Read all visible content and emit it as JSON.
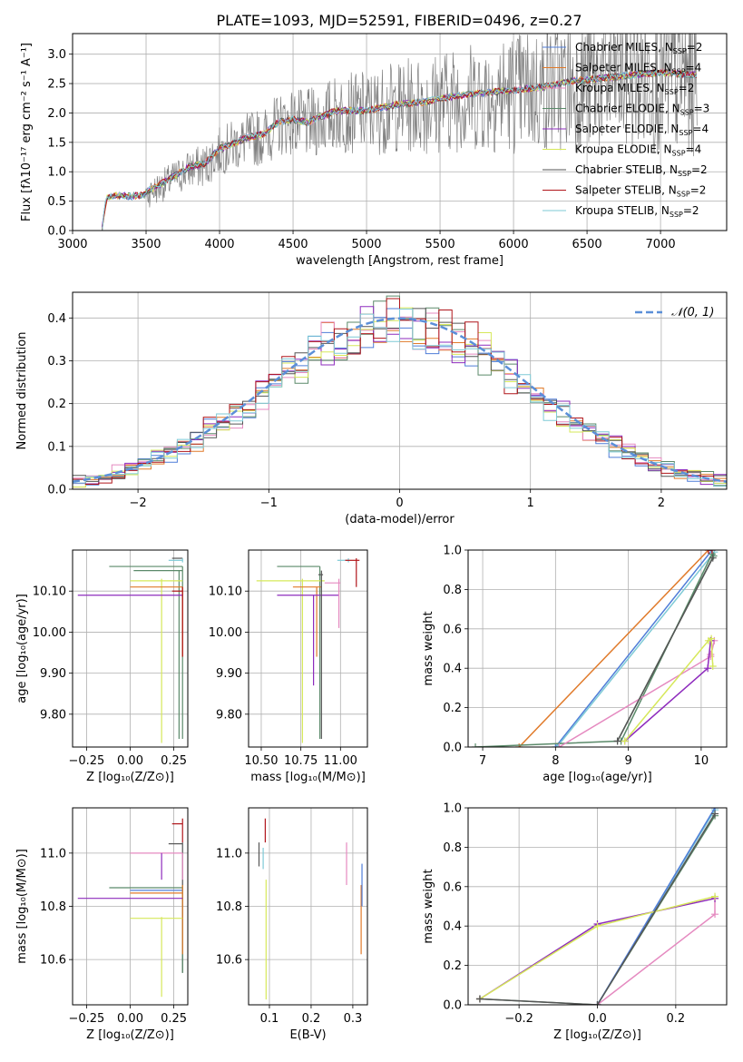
{
  "figure": {
    "suptitle": "PLATE=1093, MJD=52591, FIBERID=0496, z=0.27"
  },
  "chart_data": [
    {
      "type": "line",
      "id": "spectrum",
      "xlabel": "wavelength [Angstrom, rest frame]",
      "ylabel": "Flux [fλ10⁻¹⁷ erg cm⁻² s⁻¹ A⁻¹]",
      "xlim": [
        3000,
        7450
      ],
      "ylim": [
        0,
        3.35
      ],
      "xticks": [
        3000,
        3500,
        4000,
        4500,
        5000,
        5500,
        6000,
        6500,
        7000
      ],
      "yticks": [
        0.0,
        0.5,
        1.0,
        1.5,
        2.0,
        2.5,
        3.0
      ],
      "grid": true,
      "legend_position": "upper-right",
      "series": [
        {
          "name": "Chabrier MILES, N_SSP=2",
          "label_main": "Chabrier MILES, N",
          "label_sub": "SSP",
          "label_tail": "=2",
          "color": "#4f7dd8"
        },
        {
          "name": "Salpeter MILES, N_SSP=4",
          "label_main": "Salpeter MILES, N",
          "label_sub": "SSP",
          "label_tail": "=4",
          "color": "#e07a2a"
        },
        {
          "name": "Kroupa MILES, N_SSP=2",
          "label_main": "Kroupa MILES, N",
          "label_sub": "SSP",
          "label_tail": "=2",
          "color": "#e58ac0"
        },
        {
          "name": "Chabrier ELODIE, N_SSP=3",
          "label_main": "Chabrier ELODIE, N",
          "label_sub": "SSP",
          "label_tail": "=3",
          "color": "#5b8a6a"
        },
        {
          "name": "Salpeter ELODIE, N_SSP=4",
          "label_main": "Salpeter ELODIE, N",
          "label_sub": "SSP",
          "label_tail": "=4",
          "color": "#8e2bbd"
        },
        {
          "name": "Kroupa ELODIE, N_SSP=4",
          "label_main": "Kroupa ELODIE, N",
          "label_sub": "SSP",
          "label_tail": "=4",
          "color": "#d6e85a"
        },
        {
          "name": "Chabrier STELIB, N_SSP=2",
          "label_main": "Chabrier STELIB, N",
          "label_sub": "SSP",
          "label_tail": "=2",
          "color": "#555555"
        },
        {
          "name": "Salpeter STELIB, N_SSP=2",
          "label_main": "Salpeter STELIB, N",
          "label_sub": "SSP",
          "label_tail": "=2",
          "color": "#b0151a"
        },
        {
          "name": "Kroupa STELIB, N_SSP=2",
          "label_main": "Kroupa STELIB, N",
          "label_sub": "SSP",
          "label_tail": "=2",
          "color": "#7ecad6"
        }
      ],
      "data_color": "#808080",
      "continuum": {
        "x": [
          3200,
          3230,
          3300,
          3400,
          3500,
          3600,
          3700,
          3800,
          3900,
          4000,
          4100,
          4200,
          4300,
          4400,
          4500,
          4600,
          4700,
          4800,
          4900,
          5000,
          5200,
          5400,
          5600,
          5800,
          6000,
          6200,
          6400,
          6600,
          6800,
          7000,
          7250
        ],
        "y": [
          0.0,
          0.55,
          0.6,
          0.58,
          0.62,
          0.75,
          0.9,
          1.05,
          1.1,
          1.35,
          1.45,
          1.55,
          1.6,
          1.8,
          1.85,
          1.8,
          1.9,
          2.0,
          2.0,
          2.0,
          2.1,
          2.15,
          2.25,
          2.3,
          2.35,
          2.4,
          2.5,
          2.55,
          2.6,
          2.65,
          2.6
        ]
      },
      "noise_start_x": 3500
    },
    {
      "type": "line",
      "id": "residuals",
      "xlabel": "(data-model)/error",
      "ylabel": "Normed distribution",
      "xlim": [
        -2.5,
        2.5
      ],
      "ylim": [
        0,
        0.46
      ],
      "xticks": [
        -2,
        -1,
        0,
        1,
        2
      ],
      "yticks": [
        0.0,
        0.1,
        0.2,
        0.3,
        0.4
      ],
      "grid": true,
      "legend_position": "upper-right",
      "gauss_label": "𝒩(0, 1)",
      "gauss_color": "#5b8fd8"
    },
    {
      "type": "scatter",
      "id": "age-vs-Z",
      "xlabel": "Z [log₁₀(Z/Z⊙)]",
      "ylabel": "age  [log₁₀(age/yr)]",
      "xlim": [
        -0.33,
        0.33
      ],
      "ylim": [
        9.72,
        10.2
      ],
      "xticks": [
        -0.25,
        0.0,
        0.25
      ],
      "xticklabels": [
        "−0.25",
        "0.00",
        "0.25"
      ],
      "yticks": [
        9.8,
        9.9,
        10.0,
        10.1
      ],
      "grid": true,
      "bars": [
        {
          "color": "#555555",
          "x": 0.3,
          "y": 10.18,
          "xlo": 0.24,
          "xhi": 0.3,
          "ylo": 10.18,
          "yhi": 10.18
        },
        {
          "color": "#7ecad6",
          "x": 0.3,
          "y": 10.175,
          "xlo": 0.22,
          "xhi": 0.3,
          "ylo": 10.17,
          "yhi": 10.18
        },
        {
          "color": "#5b8a6a",
          "x": 0.3,
          "y": 10.16,
          "xlo": -0.12,
          "xhi": 0.3,
          "ylo": 9.74,
          "yhi": 10.16
        },
        {
          "color": "#5b8a6a",
          "x": 0.28,
          "y": 10.15,
          "xlo": 0.02,
          "xhi": 0.3,
          "ylo": 9.74,
          "yhi": 10.15
        },
        {
          "color": "#d6e85a",
          "x": 0.18,
          "y": 10.125,
          "xlo": 0.0,
          "xhi": 0.3,
          "ylo": 9.73,
          "yhi": 10.13
        },
        {
          "color": "#e07a2a",
          "x": 0.3,
          "y": 10.11,
          "xlo": 0.0,
          "xhi": 0.3,
          "ylo": 9.94,
          "yhi": 10.11
        },
        {
          "color": "#8e2bbd",
          "x": 0.3,
          "y": 10.09,
          "xlo": -0.3,
          "xhi": 0.3,
          "ylo": 10.09,
          "yhi": 10.09
        },
        {
          "color": "#b0151a",
          "x": 0.3,
          "y": 10.1,
          "xlo": 0.24,
          "xhi": 0.3,
          "ylo": 9.94,
          "yhi": 10.11
        }
      ]
    },
    {
      "type": "scatter",
      "id": "age-vs-mass",
      "xlabel": "mass [log₁₀(M/M⊙)]",
      "ylabel": "",
      "xlim": [
        10.42,
        11.17
      ],
      "ylim": [
        9.72,
        10.2
      ],
      "xticks": [
        10.5,
        10.75,
        11.0
      ],
      "xticklabels": [
        "10.50",
        "10.75",
        "11.00"
      ],
      "yticks": [
        9.8,
        9.9,
        10.0,
        10.1
      ],
      "grid": true,
      "bars": [
        {
          "color": "#7ecad6",
          "x": 11.05,
          "y": 10.175,
          "xlo": 10.98,
          "xhi": 11.05,
          "ylo": 10.17,
          "yhi": 10.18
        },
        {
          "color": "#b0151a",
          "x": 11.1,
          "y": 10.175,
          "xlo": 11.03,
          "xhi": 11.12,
          "ylo": 10.11,
          "yhi": 10.18
        },
        {
          "color": "#5b8a6a",
          "x": 10.87,
          "y": 10.16,
          "xlo": 10.6,
          "xhi": 10.87,
          "ylo": 9.74,
          "yhi": 10.16
        },
        {
          "color": "#d6e85a",
          "x": 10.76,
          "y": 10.125,
          "xlo": 10.47,
          "xhi": 10.9,
          "ylo": 9.73,
          "yhi": 10.13
        },
        {
          "color": "#e07a2a",
          "x": 10.85,
          "y": 10.11,
          "xlo": 10.7,
          "xhi": 10.88,
          "ylo": 9.94,
          "yhi": 10.11
        },
        {
          "color": "#8e2bbd",
          "x": 10.83,
          "y": 10.09,
          "xlo": 10.6,
          "xhi": 10.99,
          "ylo": 9.87,
          "yhi": 10.09
        },
        {
          "color": "#e58ac0",
          "x": 10.99,
          "y": 10.12,
          "xlo": 10.9,
          "xhi": 11.0,
          "ylo": 10.01,
          "yhi": 10.13
        },
        {
          "color": "#555555",
          "x": 10.88,
          "y": 10.14,
          "xlo": 10.86,
          "xhi": 10.89,
          "ylo": 9.74,
          "yhi": 10.15
        }
      ]
    },
    {
      "type": "line",
      "id": "massweight-vs-age",
      "xlabel": "age  [log₁₀(age/yr)]",
      "ylabel": "mass weight",
      "xlim": [
        6.8,
        10.35
      ],
      "ylim": [
        0,
        1.0
      ],
      "xticks": [
        7,
        8,
        9,
        10
      ],
      "yticks": [
        0.0,
        0.2,
        0.4,
        0.6,
        0.8,
        1.0
      ],
      "grid": true,
      "series": [
        {
          "color": "#e07a2a",
          "x": [
            7.5,
            10.1
          ],
          "y": [
            0.0,
            1.0
          ]
        },
        {
          "color": "#4f7dd8",
          "x": [
            8.0,
            10.15
          ],
          "y": [
            0.0,
            1.0
          ]
        },
        {
          "color": "#7ecad6",
          "x": [
            8.02,
            10.18
          ],
          "y": [
            0.0,
            0.99
          ]
        },
        {
          "color": "#5b8a6a",
          "x": [
            6.9,
            8.85,
            10.17
          ],
          "y": [
            0.0,
            0.03,
            0.97
          ]
        },
        {
          "color": "#5b8a6a",
          "x": [
            8.9,
            10.15
          ],
          "y": [
            0.03,
            0.98
          ]
        },
        {
          "color": "#e58ac0",
          "x": [
            8.05,
            10.13,
            10.18,
            10.13
          ],
          "y": [
            0.0,
            0.46,
            0.54,
            0.47
          ]
        },
        {
          "color": "#8e2bbd",
          "x": [
            8.95,
            10.09,
            10.13
          ],
          "y": [
            0.03,
            0.4,
            0.54
          ]
        },
        {
          "color": "#d6e85a",
          "x": [
            8.95,
            10.1,
            10.14,
            10.16
          ],
          "y": [
            0.03,
            0.54,
            0.55,
            0.41
          ]
        },
        {
          "color": "#b0151a",
          "x": [
            10.1,
            10.15
          ],
          "y": [
            1.0,
            1.0
          ]
        },
        {
          "color": "#555555",
          "x": [
            8.85,
            10.16
          ],
          "y": [
            0.03,
            0.96
          ]
        }
      ]
    },
    {
      "type": "scatter",
      "id": "mass-vs-Z",
      "xlabel": "Z [log₁₀(Z/Z⊙)]",
      "ylabel": "mass [log₁₀(M/M⊙)]",
      "xlim": [
        -0.33,
        0.33
      ],
      "ylim": [
        10.43,
        11.17
      ],
      "xticks": [
        -0.25,
        0.0,
        0.25
      ],
      "xticklabels": [
        "−0.25",
        "0.00",
        "0.25"
      ],
      "yticks": [
        10.6,
        10.8,
        11.0
      ],
      "grid": true,
      "bars": [
        {
          "color": "#b0151a",
          "x": 0.3,
          "y": 11.11,
          "xlo": 0.24,
          "xhi": 0.3,
          "ylo": 11.04,
          "yhi": 11.13
        },
        {
          "color": "#555555",
          "x": 0.3,
          "y": 11.035,
          "xlo": 0.22,
          "xhi": 0.3,
          "ylo": 10.55,
          "yhi": 11.04
        },
        {
          "color": "#e58ac0",
          "x": 0.3,
          "y": 11.0,
          "xlo": 0.0,
          "xhi": 0.3,
          "ylo": 10.9,
          "yhi": 11.0
        },
        {
          "color": "#8e2bbd",
          "x": 0.18,
          "y": 10.99,
          "xlo": 0.18,
          "xhi": 0.18,
          "ylo": 10.9,
          "yhi": 11.0
        },
        {
          "color": "#5b8a6a",
          "x": 0.3,
          "y": 10.87,
          "xlo": -0.12,
          "xhi": 0.3,
          "ylo": 10.55,
          "yhi": 10.88
        },
        {
          "color": "#4f7dd8",
          "x": 0.3,
          "y": 10.86,
          "xlo": 0.0,
          "xhi": 0.3,
          "ylo": 10.86,
          "yhi": 10.86
        },
        {
          "color": "#e07a2a",
          "x": 0.3,
          "y": 10.85,
          "xlo": 0.0,
          "xhi": 0.3,
          "ylo": 10.62,
          "yhi": 10.88
        },
        {
          "color": "#8e2bbd",
          "x": 0.3,
          "y": 10.83,
          "xlo": -0.3,
          "xhi": 0.3,
          "ylo": 10.83,
          "yhi": 10.83
        },
        {
          "color": "#d6e85a",
          "x": 0.18,
          "y": 10.755,
          "xlo": 0.0,
          "xhi": 0.3,
          "ylo": 10.46,
          "yhi": 10.76
        }
      ]
    },
    {
      "type": "scatter",
      "id": "mass-vs-EBV",
      "xlabel": "E(B-V)",
      "ylabel": "",
      "xlim": [
        0.05,
        0.335
      ],
      "ylim": [
        10.43,
        11.17
      ],
      "xticks": [
        0.1,
        0.2,
        0.3
      ],
      "xticklabels": [
        "0.1",
        "0.2",
        "0.3"
      ],
      "yticks": [
        10.6,
        10.8,
        11.0
      ],
      "grid": true,
      "bars": [
        {
          "color": "#b0151a",
          "x": 0.09,
          "y": 11.11,
          "xlo": 0.09,
          "xhi": 0.09,
          "ylo": 11.04,
          "yhi": 11.13
        },
        {
          "color": "#555555",
          "x": 0.075,
          "y": 11.0,
          "xlo": 0.075,
          "xhi": 0.075,
          "ylo": 10.95,
          "yhi": 11.04
        },
        {
          "color": "#7ecad6",
          "x": 0.085,
          "y": 11.0,
          "xlo": 0.085,
          "xhi": 0.085,
          "ylo": 10.94,
          "yhi": 11.02
        },
        {
          "color": "#d6e85a",
          "x": 0.092,
          "y": 10.75,
          "xlo": 0.092,
          "xhi": 0.092,
          "ylo": 10.45,
          "yhi": 10.9
        },
        {
          "color": "#e58ac0",
          "x": 0.285,
          "y": 10.95,
          "xlo": 0.285,
          "xhi": 0.285,
          "ylo": 10.88,
          "yhi": 11.04
        },
        {
          "color": "#e07a2a",
          "x": 0.32,
          "y": 10.85,
          "xlo": 0.32,
          "xhi": 0.32,
          "ylo": 10.62,
          "yhi": 10.88
        },
        {
          "color": "#4f7dd8",
          "x": 0.322,
          "y": 10.9,
          "xlo": 0.322,
          "xhi": 0.322,
          "ylo": 10.8,
          "yhi": 10.96
        }
      ]
    },
    {
      "type": "line",
      "id": "massweight-vs-Z",
      "xlabel": "Z [log₁₀(Z/Z⊙)]",
      "ylabel": "mass weight",
      "xlim": [
        -0.33,
        0.33
      ],
      "ylim": [
        0,
        1.0
      ],
      "xticks": [
        -0.2,
        0.0,
        0.2
      ],
      "xticklabels": [
        "−0.2",
        "0.0",
        "0.2"
      ],
      "yticks": [
        0.0,
        0.2,
        0.4,
        0.6,
        0.8,
        1.0
      ],
      "grid": true,
      "series": [
        {
          "color": "#5b8a6a",
          "x": [
            -0.3,
            0.0,
            0.3
          ],
          "y": [
            0.03,
            0.0,
            0.96
          ]
        },
        {
          "color": "#7ecad6",
          "x": [
            0.0,
            0.3
          ],
          "y": [
            0.0,
            0.99
          ]
        },
        {
          "color": "#4f7dd8",
          "x": [
            0.0,
            0.3
          ],
          "y": [
            0.0,
            1.0
          ]
        },
        {
          "color": "#e58ac0",
          "x": [
            0.0,
            0.3,
            0.3
          ],
          "y": [
            0.0,
            0.46,
            0.54
          ]
        },
        {
          "color": "#8e2bbd",
          "x": [
            -0.3,
            0.0,
            0.3
          ],
          "y": [
            0.03,
            0.41,
            0.54
          ]
        },
        {
          "color": "#d6e85a",
          "x": [
            -0.3,
            0.0,
            0.3
          ],
          "y": [
            0.03,
            0.4,
            0.55
          ]
        },
        {
          "color": "#555555",
          "x": [
            -0.3,
            0.0,
            0.3
          ],
          "y": [
            0.03,
            0.0,
            0.97
          ]
        }
      ]
    }
  ]
}
